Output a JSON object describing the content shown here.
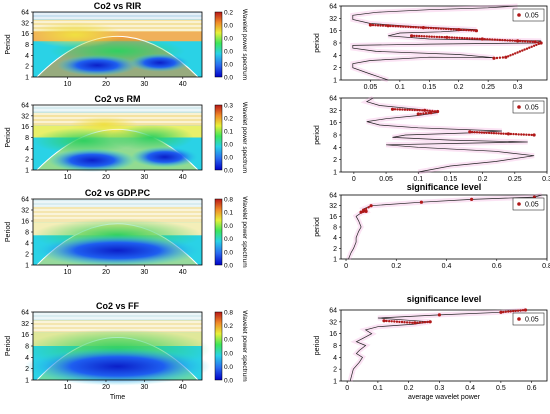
{
  "chart_data": [
    {
      "type": "heatmap",
      "title": "Co2 vs RIR",
      "ylabel": "Period",
      "y_ticks": [
        "1",
        "2",
        "4",
        "8",
        "16",
        "32",
        "64"
      ],
      "x_ticks": [
        "10",
        "20",
        "30",
        "40"
      ],
      "colorbar": {
        "label": "Wavelet power spectrum",
        "ticks": [
          "0.2",
          "0.0",
          "0.0",
          "0.0",
          "0.0",
          "0.0"
        ],
        "max": 0.2
      }
    },
    {
      "type": "heatmap",
      "title": "Co2 vs RM",
      "ylabel": "Period",
      "y_ticks": [
        "1",
        "2",
        "4",
        "8",
        "16",
        "32",
        "64"
      ],
      "x_ticks": [
        "10",
        "20",
        "30",
        "40"
      ],
      "colorbar": {
        "label": "Wavelet power spectrum",
        "ticks": [
          "0.3",
          "0.2",
          "0.1",
          "0.0",
          "0.0",
          "0.0"
        ],
        "max": 0.3
      }
    },
    {
      "type": "heatmap",
      "title": "Co2 vs GDP.PC",
      "ylabel": "Period",
      "y_ticks": [
        "1",
        "2",
        "4",
        "8",
        "16",
        "32",
        "64"
      ],
      "x_ticks": [
        "10",
        "20",
        "30",
        "40"
      ],
      "colorbar": {
        "label": "Wavelet power spectrum",
        "ticks": [
          "0.8",
          "0.1",
          "0.0",
          "0.0",
          "0.0",
          "0.0"
        ],
        "max": 0.8
      }
    },
    {
      "type": "heatmap",
      "title": "Co2 vs FF",
      "ylabel": "Period",
      "xlabel": "Time",
      "y_ticks": [
        "1",
        "2",
        "4",
        "8",
        "16",
        "32",
        "64"
      ],
      "x_ticks": [
        "10",
        "20",
        "30",
        "40"
      ],
      "colorbar": {
        "label": "Wavelet power spectrum",
        "ticks": [
          "0.8",
          "0.2",
          "0.0",
          "0.0",
          "0.0",
          "0.0"
        ],
        "max": 0.8
      }
    },
    {
      "type": "line",
      "ylabel": "period",
      "legend": "0.05",
      "legend_position": "top-right",
      "x_ticks": [
        "0.05",
        "0.1",
        "0.15",
        "0.2",
        "0.25",
        "0.3"
      ],
      "xlim": [
        0,
        0.35
      ],
      "y_ticks": [
        "1",
        "2",
        "4",
        "8",
        "16",
        "32",
        "64"
      ],
      "series": [
        {
          "values": [
            [
              0.08,
              1
            ],
            [
              0.05,
              1.4
            ],
            [
              0.02,
              2
            ],
            [
              0.02,
              2.5
            ],
            [
              0.05,
              3
            ],
            [
              0.15,
              3.6
            ],
            [
              0.26,
              3.5
            ],
            [
              0.2,
              4.2
            ],
            [
              0.06,
              5
            ],
            [
              0.02,
              6
            ],
            [
              0.02,
              7
            ],
            [
              0.15,
              7.5
            ],
            [
              0.33,
              8
            ],
            [
              0.34,
              9
            ],
            [
              0.15,
              10
            ],
            [
              0.08,
              12
            ],
            [
              0.1,
              14
            ],
            [
              0.17,
              15
            ],
            [
              0.23,
              17
            ],
            [
              0.13,
              20
            ],
            [
              0.05,
              24
            ],
            [
              0.02,
              30
            ],
            [
              0.02,
              38
            ],
            [
              0.06,
              45
            ],
            [
              0.15,
              52
            ],
            [
              0.25,
              58
            ],
            [
              0.3,
              64
            ]
          ]
        },
        {
          "significant": [
            [
              0.26,
              3.4
            ],
            [
              0.28,
              3.6
            ],
            [
              0.34,
              8
            ],
            [
              0.33,
              8.5
            ],
            [
              0.3,
              9
            ],
            [
              0.24,
              10
            ],
            [
              0.18,
              11
            ],
            [
              0.12,
              12
            ],
            [
              0.05,
              22
            ],
            [
              0.08,
              21
            ],
            [
              0.14,
              19
            ],
            [
              0.2,
              17
            ],
            [
              0.23,
              16
            ]
          ]
        }
      ]
    },
    {
      "type": "line",
      "ylabel": "period",
      "xlabel": "significance level",
      "legend": "0.05",
      "legend_position": "top-right",
      "x_ticks": [
        "0",
        "0.05",
        "0.1",
        "0.15",
        "0.2",
        "0.25",
        "0.3"
      ],
      "xlim": [
        -0.02,
        0.3
      ],
      "y_ticks": [
        "1",
        "2",
        "4",
        "8",
        "16",
        "32",
        "64"
      ],
      "series": [
        {
          "values": [
            [
              0.1,
              1
            ],
            [
              0.15,
              1.4
            ],
            [
              0.22,
              1.8
            ],
            [
              0.28,
              2.5
            ],
            [
              0.22,
              3.2
            ],
            [
              0.1,
              4
            ],
            [
              0.05,
              4.6
            ],
            [
              0.16,
              5
            ],
            [
              0.27,
              5.4
            ],
            [
              0.15,
              6
            ],
            [
              0.06,
              7
            ],
            [
              0.08,
              8
            ],
            [
              0.18,
              9
            ],
            [
              0.23,
              10
            ],
            [
              0.1,
              12
            ],
            [
              0.04,
              14
            ],
            [
              0.02,
              17
            ],
            [
              0.05,
              20
            ],
            [
              0.1,
              24
            ],
            [
              0.13,
              28
            ],
            [
              0.1,
              34
            ],
            [
              0.04,
              42
            ],
            [
              0.02,
              52
            ],
            [
              0.03,
              64
            ]
          ]
        },
        {
          "significant": [
            [
              0.1,
              26
            ],
            [
              0.12,
              28
            ],
            [
              0.13,
              30
            ],
            [
              0.11,
              32
            ],
            [
              0.06,
              34
            ],
            [
              0.18,
              9.5
            ],
            [
              0.24,
              8.5
            ],
            [
              0.28,
              8
            ]
          ]
        }
      ]
    },
    {
      "type": "line",
      "ylabel": "period",
      "legend": "0.05",
      "legend_position": "top-right",
      "x_ticks": [
        "0",
        "0.2",
        "0.4",
        "0.6",
        "0.8"
      ],
      "xlim": [
        -0.02,
        0.8
      ],
      "y_ticks": [
        "1",
        "2",
        "4",
        "8",
        "16",
        "32",
        "64"
      ],
      "series": [
        {
          "values": [
            [
              0.01,
              1
            ],
            [
              0.02,
              1.5
            ],
            [
              0.03,
              2
            ],
            [
              0.04,
              3
            ],
            [
              0.04,
              4
            ],
            [
              0.05,
              6
            ],
            [
              0.06,
              8
            ],
            [
              0.05,
              12
            ],
            [
              0.04,
              16
            ],
            [
              0.06,
              20
            ],
            [
              0.08,
              22
            ],
            [
              0.07,
              26
            ],
            [
              0.1,
              32
            ],
            [
              0.3,
              40
            ],
            [
              0.5,
              48
            ],
            [
              0.75,
              56
            ],
            [
              0.78,
              64
            ]
          ]
        },
        {
          "significant": [
            [
              0.07,
              24
            ],
            [
              0.08,
              22
            ],
            [
              0.06,
              21
            ],
            [
              0.1,
              32
            ],
            [
              0.3,
              40
            ],
            [
              0.5,
              48
            ],
            [
              0.75,
              56
            ]
          ]
        }
      ]
    },
    {
      "type": "line",
      "title": "significance level",
      "ylabel": "period",
      "xlabel": "average wavelet power",
      "legend": "0.05",
      "legend_position": "top-right",
      "x_ticks": [
        "0",
        "0.1",
        "0.2",
        "0.3",
        "0.4",
        "0.5",
        "0.6"
      ],
      "xlim": [
        -0.02,
        0.65
      ],
      "y_ticks": [
        "1",
        "2",
        "4",
        "8",
        "16",
        "32",
        "64"
      ],
      "series": [
        {
          "values": [
            [
              0.01,
              1
            ],
            [
              0.02,
              2
            ],
            [
              0.04,
              3
            ],
            [
              0.05,
              4
            ],
            [
              0.03,
              5
            ],
            [
              0.04,
              6
            ],
            [
              0.06,
              8
            ],
            [
              0.03,
              10
            ],
            [
              0.05,
              12
            ],
            [
              0.08,
              16
            ],
            [
              0.06,
              20
            ],
            [
              0.1,
              24
            ],
            [
              0.22,
              28
            ],
            [
              0.27,
              32
            ],
            [
              0.18,
              36
            ],
            [
              0.1,
              40
            ],
            [
              0.3,
              48
            ],
            [
              0.5,
              56
            ],
            [
              0.58,
              64
            ]
          ]
        },
        {
          "significant": [
            [
              0.27,
              32
            ],
            [
              0.22,
              30
            ],
            [
              0.12,
              34
            ],
            [
              0.3,
              48
            ],
            [
              0.5,
              56
            ],
            [
              0.58,
              64
            ]
          ]
        }
      ]
    }
  ]
}
